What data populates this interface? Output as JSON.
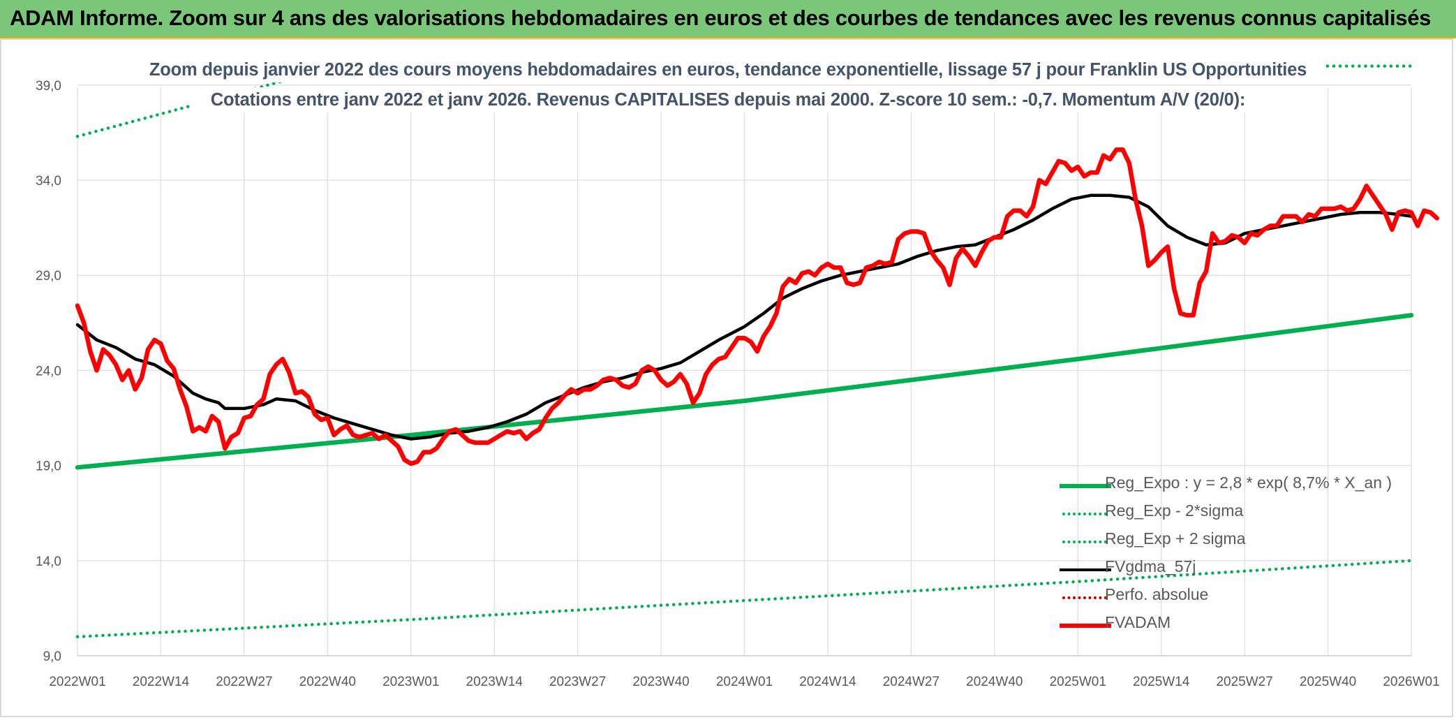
{
  "header": {
    "title": "ADAM Informe. Zoom sur 4 ans des valorisations hebdomadaires en euros et des courbes de tendances avec les revenus connus capitalisés"
  },
  "chart_data": {
    "type": "line",
    "title": "Zoom depuis janvier 2022 des cours moyens hebdomadaires en euros, tendance exponentielle, lissage 57 j pour Franklin US Opportunities",
    "subtitle": "Cotations entre janv 2022 et janv 2026. Revenus CAPITALISES depuis mai 2000. Z-score 10 sem.: -0,7. Momentum A/V (20/0):",
    "xlabel": "",
    "ylabel": "",
    "x_ticks": [
      "2022W01",
      "2022W14",
      "2022W27",
      "2022W40",
      "2023W01",
      "2023W14",
      "2023W27",
      "2023W40",
      "2024W01",
      "2024W14",
      "2024W27",
      "2024W40",
      "2025W01",
      "2025W14",
      "2025W27",
      "2025W40",
      "2026W01"
    ],
    "y_ticks": [
      "9,0",
      "14,0",
      "19,0",
      "24,0",
      "29,0",
      "34,0",
      "39,0"
    ],
    "ylim": [
      9,
      39.8
    ],
    "grid": true,
    "legend_position": "bottom-right",
    "series": [
      {
        "name": "Reg_Expo : y = 2,8 * exp( 8,7% *  X_an )",
        "color": "#00b050",
        "style": "solid-thick",
        "points": [
          [
            0,
            18.9
          ],
          [
            52,
            20.6
          ],
          [
            104,
            22.4
          ],
          [
            156,
            24.6
          ],
          [
            208,
            26.9
          ]
        ]
      },
      {
        "name": "Reg_Exp - 2*sigma",
        "color": "#00b050",
        "style": "dotted",
        "points": [
          [
            0,
            10.0
          ],
          [
            52,
            10.9
          ],
          [
            104,
            11.9
          ],
          [
            156,
            12.9
          ],
          [
            208,
            14.0
          ]
        ]
      },
      {
        "name": "Reg_Exp + 2 sigma",
        "color": "#00b050",
        "style": "dotted",
        "points": [
          [
            0,
            36.3
          ],
          [
            11,
            37.3
          ],
          [
            22,
            38.3
          ],
          [
            33,
            39.3
          ],
          [
            37,
            39.8
          ]
        ],
        "points_b": [
          [
            186,
            40.0
          ],
          [
            208,
            40.0
          ]
        ]
      },
      {
        "name": "FVgdma_57j",
        "color": "#000000",
        "style": "solid",
        "points": [
          [
            0,
            26.4
          ],
          [
            3,
            25.6
          ],
          [
            6,
            25.2
          ],
          [
            9,
            24.6
          ],
          [
            12,
            24.3
          ],
          [
            15,
            23.7
          ],
          [
            18,
            22.8
          ],
          [
            20,
            22.5
          ],
          [
            22,
            22.3
          ],
          [
            23,
            22.0
          ],
          [
            26,
            22.0
          ],
          [
            29,
            22.2
          ],
          [
            31,
            22.5
          ],
          [
            34,
            22.4
          ],
          [
            37,
            21.9
          ],
          [
            40,
            21.5
          ],
          [
            43,
            21.2
          ],
          [
            46,
            20.9
          ],
          [
            49,
            20.6
          ],
          [
            52,
            20.4
          ],
          [
            55,
            20.5
          ],
          [
            58,
            20.7
          ],
          [
            61,
            20.8
          ],
          [
            64,
            21.0
          ],
          [
            67,
            21.3
          ],
          [
            70,
            21.7
          ],
          [
            73,
            22.3
          ],
          [
            76,
            22.7
          ],
          [
            79,
            23.1
          ],
          [
            82,
            23.4
          ],
          [
            85,
            23.6
          ],
          [
            88,
            23.9
          ],
          [
            91,
            24.1
          ],
          [
            94,
            24.4
          ],
          [
            97,
            25.0
          ],
          [
            100,
            25.6
          ],
          [
            104,
            26.3
          ],
          [
            107,
            27.0
          ],
          [
            110,
            27.8
          ],
          [
            113,
            28.3
          ],
          [
            116,
            28.7
          ],
          [
            119,
            29.0
          ],
          [
            122,
            29.2
          ],
          [
            125,
            29.4
          ],
          [
            128,
            29.6
          ],
          [
            131,
            30.0
          ],
          [
            134,
            30.3
          ],
          [
            137,
            30.5
          ],
          [
            140,
            30.6
          ],
          [
            143,
            31.0
          ],
          [
            146,
            31.4
          ],
          [
            149,
            31.9
          ],
          [
            152,
            32.5
          ],
          [
            155,
            33.0
          ],
          [
            158,
            33.2
          ],
          [
            161,
            33.2
          ],
          [
            164,
            33.1
          ],
          [
            167,
            32.6
          ],
          [
            170,
            31.6
          ],
          [
            173,
            31.0
          ],
          [
            176,
            30.6
          ],
          [
            179,
            30.7
          ],
          [
            182,
            31.2
          ],
          [
            185,
            31.4
          ],
          [
            188,
            31.6
          ],
          [
            191,
            31.8
          ],
          [
            194,
            32.0
          ],
          [
            197,
            32.2
          ],
          [
            200,
            32.3
          ],
          [
            203,
            32.3
          ],
          [
            206,
            32.2
          ],
          [
            208,
            32.1
          ]
        ]
      },
      {
        "name": "Perfo. absolue",
        "color": "#c00000",
        "style": "dotted",
        "points": []
      },
      {
        "name": "FVADAM",
        "color": "#ff0000",
        "style": "solid-thick",
        "points": [
          [
            0,
            27.4
          ],
          [
            1,
            26.5
          ],
          [
            2,
            25.0
          ],
          [
            3,
            24.0
          ],
          [
            4,
            25.1
          ],
          [
            5,
            24.8
          ],
          [
            6,
            24.3
          ],
          [
            7,
            23.5
          ],
          [
            8,
            24.0
          ],
          [
            9,
            23.0
          ],
          [
            10,
            23.6
          ],
          [
            11,
            25.1
          ],
          [
            12,
            25.6
          ],
          [
            13,
            25.4
          ],
          [
            14,
            24.5
          ],
          [
            15,
            24.1
          ],
          [
            16,
            23.0
          ],
          [
            17,
            22.1
          ],
          [
            18,
            20.8
          ],
          [
            19,
            21.0
          ],
          [
            20,
            20.8
          ],
          [
            21,
            21.6
          ],
          [
            22,
            21.3
          ],
          [
            23,
            19.9
          ],
          [
            24,
            20.5
          ],
          [
            25,
            20.7
          ],
          [
            26,
            21.5
          ],
          [
            27,
            21.6
          ],
          [
            28,
            22.2
          ],
          [
            29,
            22.5
          ],
          [
            30,
            23.8
          ],
          [
            31,
            24.3
          ],
          [
            32,
            24.6
          ],
          [
            33,
            23.9
          ],
          [
            34,
            22.8
          ],
          [
            35,
            22.9
          ],
          [
            36,
            22.6
          ],
          [
            37,
            21.7
          ],
          [
            38,
            21.4
          ],
          [
            39,
            21.5
          ],
          [
            40,
            20.6
          ],
          [
            41,
            20.9
          ],
          [
            42,
            21.1
          ],
          [
            43,
            20.6
          ],
          [
            44,
            20.5
          ],
          [
            45,
            20.6
          ],
          [
            46,
            20.7
          ],
          [
            47,
            20.4
          ],
          [
            48,
            20.6
          ],
          [
            49,
            20.3
          ],
          [
            50,
            20.0
          ],
          [
            51,
            19.3
          ],
          [
            52,
            19.1
          ],
          [
            53,
            19.2
          ],
          [
            54,
            19.7
          ],
          [
            55,
            19.7
          ],
          [
            56,
            19.9
          ],
          [
            57,
            20.4
          ],
          [
            58,
            20.8
          ],
          [
            59,
            20.9
          ],
          [
            60,
            20.6
          ],
          [
            61,
            20.3
          ],
          [
            62,
            20.2
          ],
          [
            63,
            20.2
          ],
          [
            64,
            20.2
          ],
          [
            65,
            20.4
          ],
          [
            66,
            20.6
          ],
          [
            67,
            20.8
          ],
          [
            68,
            20.7
          ],
          [
            69,
            20.8
          ],
          [
            70,
            20.4
          ],
          [
            71,
            20.7
          ],
          [
            72,
            20.9
          ],
          [
            73,
            21.5
          ],
          [
            74,
            22.0
          ],
          [
            75,
            22.3
          ],
          [
            76,
            22.7
          ],
          [
            77,
            23.0
          ],
          [
            78,
            22.8
          ],
          [
            79,
            23.0
          ],
          [
            80,
            23.0
          ],
          [
            81,
            23.2
          ],
          [
            82,
            23.5
          ],
          [
            83,
            23.6
          ],
          [
            84,
            23.5
          ],
          [
            85,
            23.2
          ],
          [
            86,
            23.1
          ],
          [
            87,
            23.3
          ],
          [
            88,
            24.0
          ],
          [
            89,
            24.2
          ],
          [
            90,
            24.0
          ],
          [
            91,
            23.5
          ],
          [
            92,
            23.2
          ],
          [
            93,
            23.4
          ],
          [
            94,
            23.8
          ],
          [
            95,
            23.3
          ],
          [
            96,
            22.3
          ],
          [
            97,
            22.8
          ],
          [
            98,
            23.8
          ],
          [
            99,
            24.3
          ],
          [
            100,
            24.6
          ],
          [
            101,
            24.7
          ],
          [
            102,
            25.2
          ],
          [
            103,
            25.7
          ],
          [
            104,
            25.7
          ],
          [
            105,
            25.5
          ],
          [
            106,
            25.0
          ],
          [
            107,
            25.8
          ],
          [
            108,
            26.3
          ],
          [
            109,
            27.0
          ],
          [
            110,
            28.4
          ],
          [
            111,
            28.8
          ],
          [
            112,
            28.6
          ],
          [
            113,
            29.1
          ],
          [
            114,
            29.2
          ],
          [
            115,
            29.0
          ],
          [
            116,
            29.4
          ],
          [
            117,
            29.6
          ],
          [
            118,
            29.4
          ],
          [
            119,
            29.4
          ],
          [
            120,
            28.6
          ],
          [
            121,
            28.5
          ],
          [
            122,
            28.6
          ],
          [
            123,
            29.4
          ],
          [
            124,
            29.5
          ],
          [
            125,
            29.7
          ],
          [
            126,
            29.6
          ],
          [
            127,
            29.7
          ],
          [
            128,
            30.9
          ],
          [
            129,
            31.2
          ],
          [
            130,
            31.3
          ],
          [
            131,
            31.3
          ],
          [
            132,
            31.2
          ],
          [
            133,
            30.3
          ],
          [
            134,
            29.8
          ],
          [
            135,
            29.4
          ],
          [
            136,
            28.5
          ],
          [
            137,
            29.9
          ],
          [
            138,
            30.4
          ],
          [
            139,
            30.0
          ],
          [
            140,
            29.5
          ],
          [
            141,
            30.2
          ],
          [
            142,
            30.8
          ],
          [
            143,
            31.0
          ],
          [
            144,
            31.0
          ],
          [
            145,
            32.1
          ],
          [
            146,
            32.4
          ],
          [
            147,
            32.4
          ],
          [
            148,
            32.1
          ],
          [
            149,
            32.6
          ],
          [
            150,
            34.0
          ],
          [
            151,
            33.8
          ],
          [
            152,
            34.4
          ],
          [
            153,
            35.0
          ],
          [
            154,
            34.9
          ],
          [
            155,
            34.5
          ],
          [
            156,
            34.7
          ],
          [
            157,
            34.2
          ],
          [
            158,
            34.4
          ],
          [
            159,
            34.4
          ],
          [
            160,
            35.3
          ],
          [
            161,
            35.1
          ],
          [
            162,
            35.6
          ],
          [
            163,
            35.6
          ],
          [
            164,
            34.9
          ],
          [
            165,
            33.0
          ],
          [
            166,
            31.6
          ],
          [
            167,
            29.5
          ],
          [
            168,
            29.8
          ],
          [
            169,
            30.2
          ],
          [
            170,
            30.5
          ],
          [
            171,
            28.3
          ],
          [
            172,
            27.0
          ],
          [
            173,
            26.9
          ],
          [
            174,
            26.9
          ],
          [
            175,
            28.6
          ],
          [
            176,
            29.2
          ],
          [
            177,
            31.2
          ],
          [
            178,
            30.7
          ],
          [
            179,
            30.8
          ],
          [
            180,
            31.1
          ],
          [
            181,
            31.0
          ],
          [
            182,
            30.7
          ],
          [
            183,
            31.2
          ],
          [
            184,
            31.1
          ],
          [
            185,
            31.4
          ],
          [
            186,
            31.6
          ],
          [
            187,
            31.6
          ],
          [
            188,
            32.1
          ],
          [
            189,
            32.1
          ],
          [
            190,
            32.1
          ],
          [
            191,
            31.8
          ],
          [
            192,
            32.2
          ],
          [
            193,
            32.1
          ],
          [
            194,
            32.5
          ],
          [
            195,
            32.5
          ],
          [
            196,
            32.5
          ],
          [
            197,
            32.6
          ],
          [
            198,
            32.4
          ],
          [
            199,
            32.5
          ],
          [
            200,
            33.0
          ],
          [
            201,
            33.7
          ],
          [
            202,
            33.2
          ],
          [
            203,
            32.7
          ],
          [
            204,
            32.2
          ],
          [
            205,
            31.4
          ],
          [
            206,
            32.3
          ],
          [
            207,
            32.4
          ],
          [
            208,
            32.3
          ],
          [
            209,
            31.6
          ],
          [
            210,
            32.4
          ],
          [
            211,
            32.3
          ],
          [
            212,
            32.0
          ]
        ]
      }
    ]
  }
}
